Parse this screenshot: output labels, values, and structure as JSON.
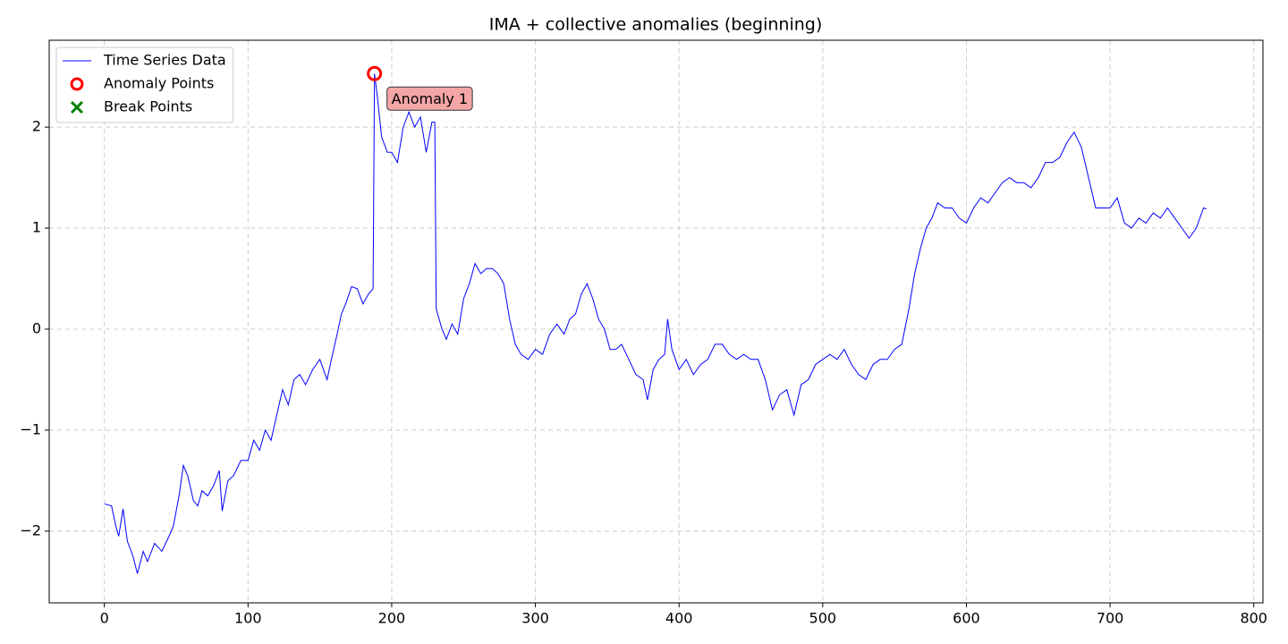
{
  "chart_data": {
    "type": "line",
    "title": "IMA + collective anomalies (beginning)",
    "xlim": [
      -38.4,
      806.4
    ],
    "ylim": [
      -2.71,
      2.86
    ],
    "xticks": [
      0,
      100,
      200,
      300,
      400,
      500,
      600,
      700,
      800
    ],
    "yticks": [
      {
        "value": -2,
        "label": "−2"
      },
      {
        "value": -1,
        "label": "−1"
      },
      0,
      1,
      2
    ],
    "grid": true,
    "legend": "upper left",
    "series": [
      {
        "name": "Time Series Data",
        "color": "#0000ff",
        "kind": "line",
        "x": [
          0,
          5,
          8,
          10,
          13,
          16,
          20,
          23,
          27,
          30,
          35,
          40,
          45,
          48,
          52,
          55,
          58,
          62,
          65,
          68,
          72,
          76,
          80,
          82,
          86,
          90,
          95,
          100,
          104,
          108,
          112,
          116,
          120,
          124,
          128,
          132,
          136,
          140,
          145,
          150,
          155,
          158,
          162,
          165,
          168,
          172,
          176,
          180,
          184,
          187,
          188,
          190,
          193,
          197,
          200,
          204,
          208,
          212,
          216,
          220,
          224,
          228,
          230,
          231,
          235,
          238,
          242,
          246,
          250,
          254,
          258,
          262,
          266,
          270,
          274,
          278,
          282,
          286,
          290,
          295,
          300,
          305,
          310,
          315,
          320,
          324,
          328,
          332,
          336,
          340,
          344,
          348,
          352,
          356,
          360,
          365,
          370,
          375,
          378,
          382,
          386,
          390,
          392,
          395,
          400,
          405,
          410,
          415,
          420,
          425,
          430,
          435,
          440,
          445,
          450,
          455,
          460,
          465,
          470,
          475,
          480,
          485,
          490,
          495,
          500,
          505,
          510,
          515,
          520,
          525,
          530,
          535,
          540,
          545,
          550,
          555,
          560,
          564,
          568,
          572,
          576,
          580,
          585,
          590,
          595,
          600,
          605,
          610,
          615,
          620,
          625,
          630,
          635,
          640,
          645,
          650,
          655,
          660,
          665,
          670,
          675,
          680,
          685,
          690,
          695,
          700,
          705,
          710,
          715,
          720,
          725,
          730,
          735,
          740,
          745,
          750,
          755,
          760,
          765,
          767
        ],
        "values": [
          -1.73,
          -1.75,
          -1.95,
          -2.05,
          -1.78,
          -2.1,
          -2.25,
          -2.42,
          -2.2,
          -2.3,
          -2.12,
          -2.2,
          -2.05,
          -1.95,
          -1.65,
          -1.35,
          -1.45,
          -1.7,
          -1.75,
          -1.6,
          -1.65,
          -1.55,
          -1.4,
          -1.8,
          -1.5,
          -1.45,
          -1.3,
          -1.3,
          -1.1,
          -1.2,
          -1.0,
          -1.1,
          -0.85,
          -0.6,
          -0.75,
          -0.5,
          -0.45,
          -0.55,
          -0.4,
          -0.3,
          -0.5,
          -0.3,
          -0.05,
          0.15,
          0.25,
          0.42,
          0.4,
          0.25,
          0.35,
          0.4,
          2.53,
          2.3,
          1.9,
          1.75,
          1.75,
          1.65,
          2.0,
          2.15,
          2.0,
          2.1,
          1.75,
          2.05,
          2.05,
          0.2,
          0.0,
          -0.1,
          0.05,
          -0.05,
          0.3,
          0.45,
          0.65,
          0.55,
          0.6,
          0.6,
          0.55,
          0.45,
          0.1,
          -0.15,
          -0.25,
          -0.3,
          -0.2,
          -0.25,
          -0.05,
          0.05,
          -0.05,
          0.1,
          0.15,
          0.35,
          0.45,
          0.3,
          0.1,
          0.0,
          -0.2,
          -0.2,
          -0.15,
          -0.3,
          -0.45,
          -0.5,
          -0.7,
          -0.4,
          -0.3,
          -0.25,
          0.1,
          -0.2,
          -0.4,
          -0.3,
          -0.45,
          -0.35,
          -0.3,
          -0.15,
          -0.15,
          -0.25,
          -0.3,
          -0.25,
          -0.3,
          -0.3,
          -0.5,
          -0.8,
          -0.65,
          -0.6,
          -0.85,
          -0.55,
          -0.5,
          -0.35,
          -0.3,
          -0.25,
          -0.3,
          -0.2,
          -0.35,
          -0.45,
          -0.5,
          -0.35,
          -0.3,
          -0.3,
          -0.2,
          -0.15,
          0.2,
          0.55,
          0.8,
          1.0,
          1.1,
          1.25,
          1.2,
          1.2,
          1.1,
          1.05,
          1.2,
          1.3,
          1.25,
          1.35,
          1.45,
          1.5,
          1.45,
          1.45,
          1.4,
          1.5,
          1.65,
          1.65,
          1.7,
          1.85,
          1.95,
          1.8,
          1.5,
          1.2,
          1.2,
          1.2,
          1.3,
          1.05,
          1.0,
          1.1,
          1.05,
          1.15,
          1.1,
          1.2,
          1.1,
          1.0,
          0.9,
          1.0,
          1.2,
          1.19
        ]
      },
      {
        "name": "Anomaly Points",
        "color": "#ff0000",
        "kind": "circle",
        "x": [
          188
        ],
        "values": [
          2.53
        ]
      },
      {
        "name": "Break Points",
        "color": "#008000",
        "kind": "cross",
        "x": [],
        "values": []
      }
    ],
    "annotations": [
      {
        "text": "Anomaly 1",
        "x": 188,
        "y": 2.53
      }
    ]
  }
}
